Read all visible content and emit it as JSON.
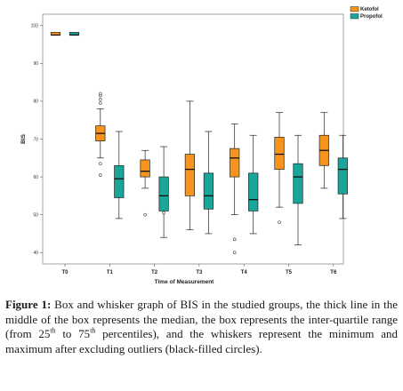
{
  "chart_data": {
    "type": "box",
    "xlabel": "Time of Measurement",
    "ylabel": "BIS",
    "ylim": [
      37,
      103
    ],
    "yticks": [
      40,
      50,
      60,
      70,
      80,
      90,
      100
    ],
    "categories": [
      "T0",
      "T1",
      "T2",
      "T3",
      "T4",
      "T5",
      "T6"
    ],
    "legend_position": "top-right",
    "series": [
      {
        "name": "Ketofol",
        "color": "#F7941D",
        "boxes": [
          {
            "min": 97.5,
            "q1": 97.5,
            "median": 97.5,
            "q3": 98.2,
            "max": 98.2,
            "outliers": []
          },
          {
            "min": 65,
            "q1": 69.5,
            "median": 71.5,
            "q3": 73.5,
            "max": 78,
            "outliers": [
              79.5,
              80.5,
              81.5,
              82,
              63.5,
              60.5
            ]
          },
          {
            "min": 57,
            "q1": 60,
            "median": 61.5,
            "q3": 64.5,
            "max": 67,
            "outliers": [
              50
            ]
          },
          {
            "min": 46,
            "q1": 55,
            "median": 62,
            "q3": 66,
            "max": 80,
            "outliers": []
          },
          {
            "min": 50,
            "q1": 60,
            "median": 65,
            "q3": 67.5,
            "max": 74,
            "outliers": [
              43.5,
              40
            ]
          },
          {
            "min": 52,
            "q1": 62,
            "median": 66,
            "q3": 70.5,
            "max": 77,
            "outliers": [
              48
            ]
          },
          {
            "min": 57,
            "q1": 63,
            "median": 67,
            "q3": 71,
            "max": 77,
            "outliers": []
          }
        ]
      },
      {
        "name": "Propofol",
        "color": "#1AA59B",
        "boxes": [
          {
            "min": 97.5,
            "q1": 97.5,
            "median": 97.5,
            "q3": 98.2,
            "max": 98.2,
            "outliers": []
          },
          {
            "min": 49,
            "q1": 54.5,
            "median": 59.5,
            "q3": 63,
            "max": 72,
            "outliers": []
          },
          {
            "min": 44,
            "q1": 51,
            "median": 55,
            "q3": 60,
            "max": 68,
            "outliers": [
              50.5
            ]
          },
          {
            "min": 45,
            "q1": 51.5,
            "median": 55,
            "q3": 61,
            "max": 72,
            "outliers": []
          },
          {
            "min": 45,
            "q1": 51,
            "median": 54,
            "q3": 61,
            "max": 71,
            "outliers": []
          },
          {
            "min": 42,
            "q1": 53,
            "median": 60,
            "q3": 63.5,
            "max": 71,
            "outliers": []
          },
          {
            "min": 49,
            "q1": 55.5,
            "median": 62,
            "q3": 65,
            "max": 71,
            "outliers": []
          }
        ]
      }
    ]
  },
  "caption": {
    "label": "Figure 1:",
    "part1": " Box and whisker graph of BIS in the studied groups, the thick line in the middle of the box represents the median, the box represents the inter-quartile range (from 25",
    "sup1": "th",
    "part2": " to 75",
    "sup2": "th",
    "part3": " percentiles), and the whiskers represent the minimum and maximum after excluding outliers (black-filled circles)."
  }
}
